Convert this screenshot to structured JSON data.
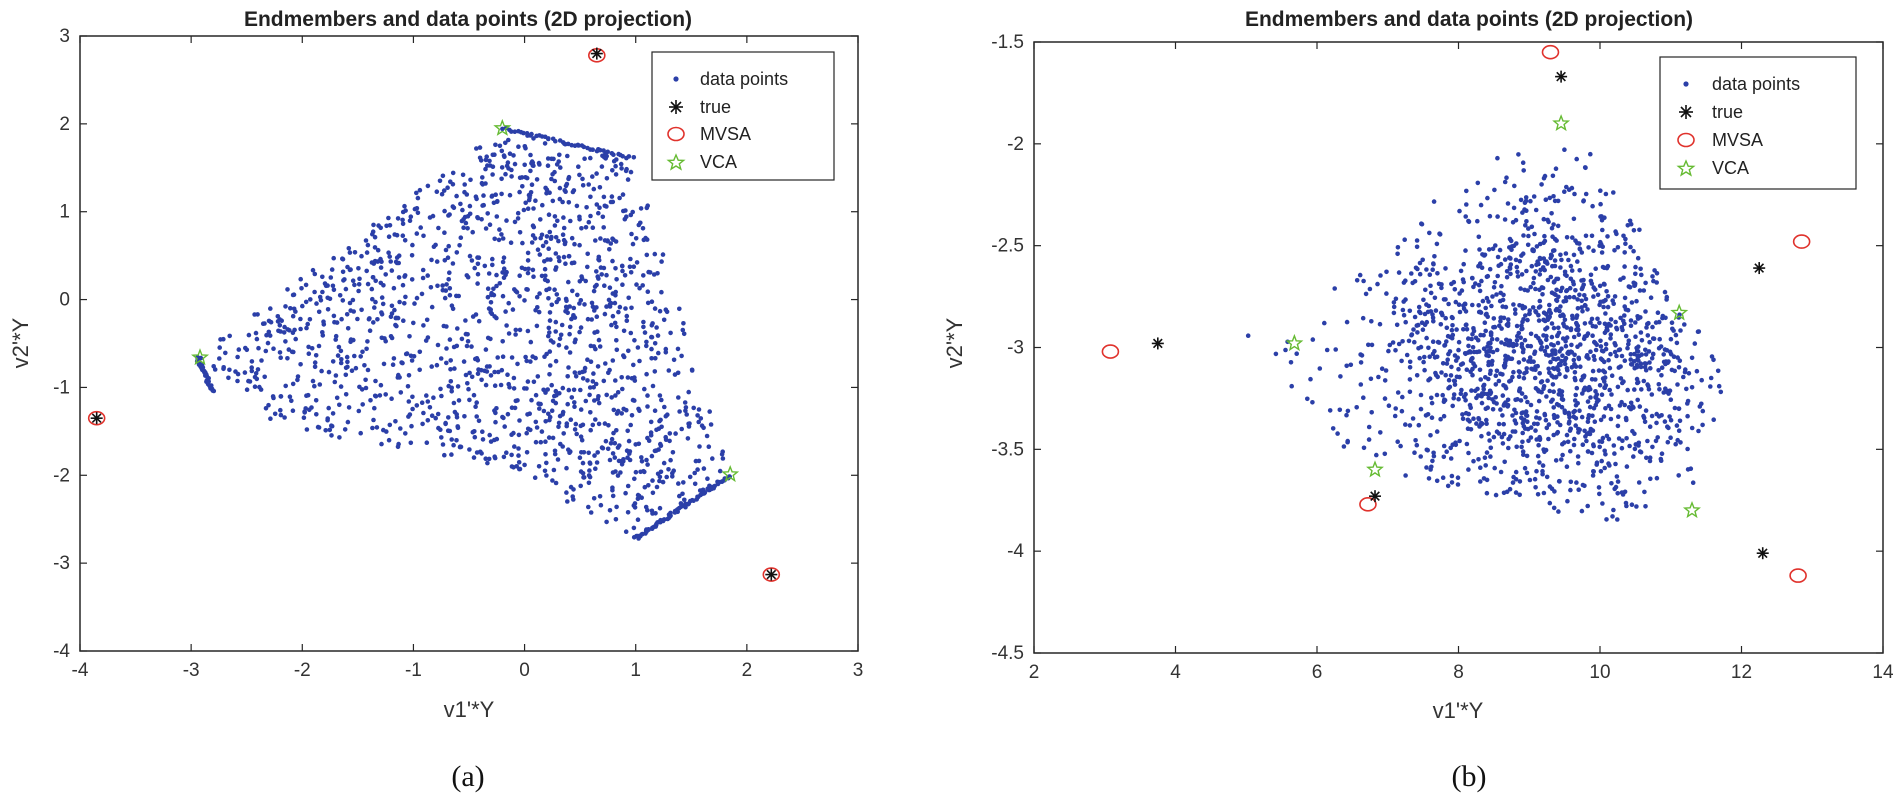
{
  "colors": {
    "data_points": "#2b3fa8",
    "true": "#111111",
    "mvsa": "#e0322c",
    "vca": "#66bb33",
    "axis": "#262626"
  },
  "chart_data": [
    {
      "type": "scatter",
      "caption": "(a)",
      "title": "Endmembers and data points (2D projection)",
      "xlabel": "v1'*Y",
      "ylabel": "v2'*Y",
      "xlim": [
        -4,
        3
      ],
      "ylim": [
        -4,
        3
      ],
      "xticks": [
        -4,
        -3,
        -2,
        -1,
        0,
        1,
        2,
        3
      ],
      "yticks": [
        -4,
        -3,
        -2,
        -1,
        0,
        1,
        2,
        3
      ],
      "xtick_labels": [
        "-4",
        "-3",
        "-2",
        "-1",
        "0",
        "1",
        "2",
        "3"
      ],
      "ytick_labels": [
        "-4",
        "-3",
        "-2",
        "-1",
        "0",
        "1",
        "2",
        "3"
      ],
      "legend_position": "top-right",
      "legend": [
        "data points",
        "true",
        "MVSA",
        "VCA"
      ],
      "data_points": {
        "count": 1500,
        "hull": [
          [
            -0.2,
            1.95
          ],
          [
            1.0,
            1.6
          ],
          [
            1.85,
            -2.0
          ],
          [
            1.0,
            -2.72
          ],
          [
            -0.2,
            -1.9
          ],
          [
            -2.2,
            -1.45
          ],
          [
            -2.95,
            -0.65
          ]
        ],
        "approx_x_range": [
          -2.95,
          1.85
        ],
        "approx_y_range": [
          -2.72,
          1.95
        ]
      },
      "true": [
        [
          0.65,
          2.8
        ],
        [
          -3.85,
          -1.35
        ],
        [
          2.22,
          -3.13
        ]
      ],
      "MVSA": [
        [
          0.65,
          2.78
        ],
        [
          -3.85,
          -1.35
        ],
        [
          2.22,
          -3.13
        ]
      ],
      "VCA": [
        [
          -0.2,
          1.95
        ],
        [
          -2.92,
          -0.66
        ],
        [
          1.85,
          -1.99
        ]
      ]
    },
    {
      "type": "scatter",
      "caption": "(b)",
      "title": "Endmembers and data points (2D projection)",
      "xlabel": "v1'*Y",
      "ylabel": "v2'*Y",
      "xlim": [
        2,
        14
      ],
      "ylim": [
        -4.5,
        -1.5
      ],
      "xticks": [
        2,
        4,
        6,
        8,
        10,
        12,
        14
      ],
      "yticks": [
        -4.5,
        -4,
        -3.5,
        -3,
        -2.5,
        -2,
        -1.5
      ],
      "xtick_labels": [
        "2",
        "4",
        "6",
        "8",
        "10",
        "12",
        "14"
      ],
      "ytick_labels": [
        "-4.5",
        "-4",
        "-3.5",
        "-3",
        "-2.5",
        "-2",
        "-1.5"
      ],
      "legend_position": "top-right",
      "legend": [
        "data points",
        "true",
        "MVSA",
        "VCA"
      ],
      "data_points": {
        "count": 1600,
        "center": [
          9.2,
          -3.05
        ],
        "hull": [
          [
            5.0,
            -2.93
          ],
          [
            8.6,
            -2.05
          ],
          [
            9.45,
            -1.92
          ],
          [
            10.0,
            -2.05
          ],
          [
            11.2,
            -2.8
          ],
          [
            11.8,
            -3.1
          ],
          [
            11.3,
            -3.8
          ],
          [
            10.0,
            -3.87
          ],
          [
            6.8,
            -3.6
          ],
          [
            5.3,
            -3.2
          ]
        ],
        "approx_x_range": [
          5.0,
          12.0
        ],
        "approx_y_range": [
          -3.87,
          -1.92
        ]
      },
      "true": [
        [
          9.45,
          -1.67
        ],
        [
          3.75,
          -2.98
        ],
        [
          6.82,
          -3.73
        ],
        [
          12.25,
          -2.61
        ],
        [
          12.3,
          -4.01
        ]
      ],
      "MVSA": [
        [
          9.3,
          -1.55
        ],
        [
          3.08,
          -3.02
        ],
        [
          6.72,
          -3.77
        ],
        [
          12.85,
          -2.48
        ],
        [
          12.8,
          -4.12
        ]
      ],
      "VCA": [
        [
          9.45,
          -1.9
        ],
        [
          5.68,
          -2.98
        ],
        [
          6.82,
          -3.6
        ],
        [
          11.12,
          -2.83
        ],
        [
          11.3,
          -3.8
        ]
      ]
    }
  ]
}
